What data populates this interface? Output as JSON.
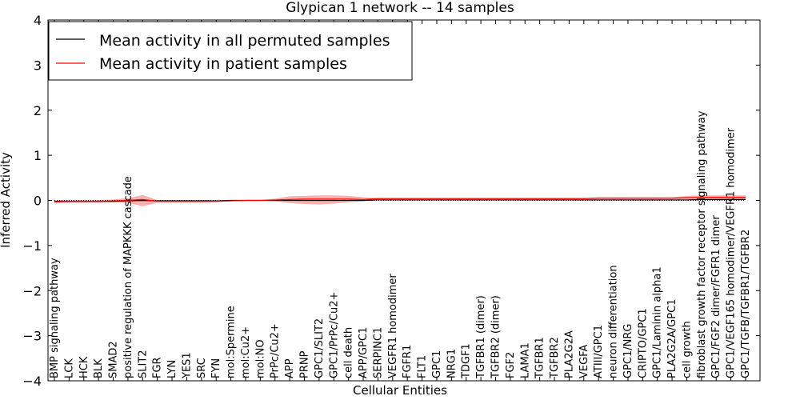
{
  "chart_data": {
    "type": "line",
    "title": "Glypican 1 network -- 14 samples",
    "xlabel": "Cellular Entities",
    "ylabel": "Inferred Activity",
    "ylim": [
      -4,
      4
    ],
    "yticks": [
      "4",
      "3",
      "2",
      "1",
      "0",
      "−1",
      "−2",
      "−3",
      "−4"
    ],
    "ytick_values": [
      4,
      3,
      2,
      1,
      0,
      -1,
      -2,
      -3,
      -4
    ],
    "legend_position": "top-left",
    "grid": false,
    "reference_line": {
      "y": 0,
      "style": "dotted"
    },
    "categories": [
      "BMP signaling pathway",
      "LCK",
      "HCK",
      "BLK",
      "SMAD2",
      "positive regulation of MAPKKK cascade",
      "SLIT2",
      "FGR",
      "LYN",
      "YES1",
      "SRC",
      "FYN",
      "mol:Spermine",
      "mol:Cu2+",
      "mol:NO",
      "PrPc/Cu2+",
      "APP",
      "PRNP",
      "GPC1/SLIT2",
      "GPC1/PrPc/Cu2+",
      "cell death",
      "APP/GPC1",
      "SERPINC1",
      "VEGFR1 homodimer",
      "FGFR1",
      "FLT1",
      "GPC1",
      "NRG1",
      "TDGF1",
      "TGFBR1 (dimer)",
      "TGFBR2 (dimer)",
      "FGF2",
      "LAMA1",
      "TGFBR1",
      "TGFBR2",
      "PLA2G2A",
      "VEGFA",
      "ATIII/GPC1",
      "neuron differentiation",
      "GPC1/NRG",
      "CRIPTO/GPC1",
      "GPC1/Laminin alpha1",
      "PLA2G2A/GPC1",
      "cell growth",
      "fibroblast growth factor receptor signaling pathway",
      "GPC1/FGF2 dimer/FGFR1 dimer",
      "GPC1/VEGF165 homodimer/VEGFR1 homodimer",
      "GPC1/TGFB/TGFBR1/TGFBR2"
    ],
    "series": [
      {
        "name": "Mean activity in all permuted samples",
        "color": "#000000",
        "values": [
          -0.02,
          -0.02,
          -0.02,
          -0.02,
          -0.02,
          -0.01,
          0.0,
          -0.01,
          -0.01,
          -0.01,
          -0.01,
          -0.01,
          0.0,
          0.0,
          0.0,
          0.0,
          0.0,
          0.0,
          0.0,
          0.0,
          0.0,
          0.0,
          0.01,
          0.01,
          0.01,
          0.01,
          0.01,
          0.01,
          0.01,
          0.01,
          0.01,
          0.01,
          0.01,
          0.01,
          0.01,
          0.01,
          0.01,
          0.01,
          0.01,
          0.01,
          0.01,
          0.01,
          0.01,
          0.01,
          0.02,
          0.02,
          0.02,
          0.02
        ],
        "band_lower": [
          -0.04,
          -0.04,
          -0.04,
          -0.04,
          -0.04,
          -0.03,
          -0.02,
          -0.03,
          -0.03,
          -0.03,
          -0.03,
          -0.02,
          -0.01,
          -0.01,
          -0.01,
          -0.01,
          -0.01,
          -0.01,
          -0.01,
          -0.01,
          -0.01,
          -0.01,
          0.0,
          0.0,
          0.0,
          0.0,
          0.0,
          0.0,
          0.0,
          0.0,
          0.0,
          0.0,
          0.0,
          0.0,
          0.0,
          0.0,
          0.0,
          0.0,
          0.0,
          0.0,
          0.0,
          0.0,
          0.0,
          0.0,
          0.0,
          0.0,
          0.0,
          0.0
        ],
        "band_upper": [
          0.0,
          0.0,
          0.0,
          0.0,
          0.0,
          0.01,
          0.02,
          0.01,
          0.01,
          0.01,
          0.01,
          0.0,
          0.01,
          0.01,
          0.01,
          0.01,
          0.01,
          0.01,
          0.01,
          0.01,
          0.01,
          0.01,
          0.02,
          0.02,
          0.02,
          0.02,
          0.02,
          0.02,
          0.02,
          0.02,
          0.02,
          0.02,
          0.02,
          0.02,
          0.02,
          0.02,
          0.02,
          0.02,
          0.02,
          0.02,
          0.02,
          0.02,
          0.02,
          0.02,
          0.04,
          0.04,
          0.04,
          0.04
        ]
      },
      {
        "name": "Mean activity in patient samples",
        "color": "#ff0000",
        "values": [
          -0.03,
          -0.02,
          -0.02,
          -0.02,
          -0.01,
          0.0,
          0.02,
          -0.02,
          -0.02,
          -0.02,
          -0.02,
          -0.02,
          -0.01,
          0.0,
          0.0,
          0.01,
          0.02,
          0.03,
          0.03,
          0.03,
          0.03,
          0.02,
          0.04,
          0.04,
          0.04,
          0.04,
          0.04,
          0.04,
          0.04,
          0.04,
          0.04,
          0.04,
          0.04,
          0.04,
          0.04,
          0.04,
          0.04,
          0.05,
          0.05,
          0.05,
          0.05,
          0.05,
          0.05,
          0.06,
          0.07,
          0.07,
          0.07,
          0.07
        ],
        "band_lower": [
          -0.06,
          -0.05,
          -0.05,
          -0.05,
          -0.04,
          -0.05,
          -0.13,
          -0.05,
          -0.05,
          -0.05,
          -0.05,
          -0.04,
          -0.02,
          -0.01,
          -0.01,
          -0.02,
          -0.06,
          -0.08,
          -0.09,
          -0.07,
          -0.04,
          -0.02,
          0.02,
          0.02,
          0.02,
          0.02,
          0.02,
          0.02,
          0.02,
          0.02,
          0.02,
          0.02,
          0.02,
          0.02,
          0.02,
          0.02,
          0.02,
          0.02,
          0.02,
          0.02,
          0.02,
          0.02,
          0.02,
          0.02,
          0.03,
          0.03,
          0.03,
          0.03
        ],
        "band_upper": [
          0.0,
          0.01,
          0.01,
          0.01,
          0.02,
          0.05,
          0.12,
          0.01,
          0.01,
          0.01,
          0.01,
          0.0,
          0.0,
          0.01,
          0.01,
          0.04,
          0.09,
          0.1,
          0.11,
          0.11,
          0.1,
          0.07,
          0.05,
          0.05,
          0.05,
          0.05,
          0.05,
          0.05,
          0.05,
          0.05,
          0.05,
          0.05,
          0.05,
          0.05,
          0.05,
          0.05,
          0.05,
          0.07,
          0.07,
          0.07,
          0.07,
          0.07,
          0.07,
          0.1,
          0.11,
          0.11,
          0.11,
          0.11
        ]
      }
    ]
  }
}
